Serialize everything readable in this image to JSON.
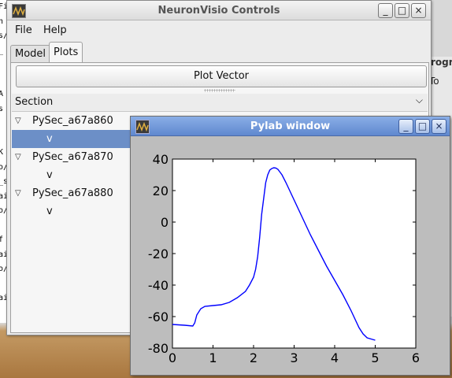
{
  "main_window": {
    "title": "NeuronVisio Controls",
    "menu": {
      "file": "File",
      "help": "Help"
    },
    "tabs": [
      {
        "label": "Model"
      },
      {
        "label": "Plots",
        "active": true
      }
    ],
    "plot_button": "Plot Vector",
    "section_header": "Section",
    "tree": [
      {
        "section": "PySec_a67a860",
        "child": "v",
        "child_selected": true
      },
      {
        "section": "PySec_a67a870",
        "child": "v",
        "child_selected": false
      },
      {
        "section": "PySec_a67a880",
        "child": "v",
        "child_selected": false
      }
    ],
    "buttons": {
      "minimize": "_",
      "maximize": "□",
      "close": "×"
    }
  },
  "background": {
    "right_window_title": "rogr",
    "right_window_menu": "To",
    "terminal_fragments": [
      "Fi",
      "n",
      "s/",
      "_",
      "",
      "",
      "A",
      "s",
      "",
      "",
      "K",
      "o/",
      "_s",
      "ai",
      "o/",
      "",
      "f",
      "ai",
      "o/",
      "",
      "ai"
    ]
  },
  "pylab_window": {
    "title": "Pylab window",
    "buttons": {
      "minimize": "_",
      "maximize": "□",
      "close": "×"
    }
  },
  "colors": {
    "selection": "#6c8fc7",
    "line": "#0000ff",
    "pylab_titlebar": "#6f94d8"
  },
  "chart_data": {
    "type": "line",
    "title": "",
    "xlabel": "",
    "ylabel": "",
    "xlim": [
      0,
      6
    ],
    "ylim": [
      -80,
      40
    ],
    "xticks": [
      0,
      1,
      2,
      3,
      4,
      5,
      6
    ],
    "yticks": [
      -80,
      -60,
      -40,
      -20,
      0,
      20,
      40
    ],
    "grid": false,
    "series": [
      {
        "color": "#0000ff",
        "x": [
          0,
          0.3,
          0.5,
          0.55,
          0.6,
          0.7,
          0.8,
          1.0,
          1.2,
          1.4,
          1.6,
          1.8,
          1.9,
          2.0,
          2.05,
          2.1,
          2.15,
          2.2,
          2.3,
          2.35,
          2.4,
          2.45,
          2.5,
          2.55,
          2.6,
          2.7,
          2.8,
          3.0,
          3.2,
          3.4,
          3.6,
          3.8,
          4.0,
          4.2,
          4.4,
          4.6,
          4.7,
          4.8,
          5.0
        ],
        "y": [
          -65,
          -65.5,
          -66,
          -64,
          -59,
          -55,
          -53.5,
          -53,
          -52.5,
          -51,
          -48,
          -44,
          -40,
          -35,
          -30,
          -22,
          -10,
          5,
          25,
          30,
          33,
          34,
          34.5,
          34.3,
          33.5,
          30,
          25,
          14,
          3,
          -8,
          -18,
          -28,
          -37,
          -46,
          -56,
          -67,
          -71,
          -73.5,
          -75
        ]
      }
    ]
  }
}
